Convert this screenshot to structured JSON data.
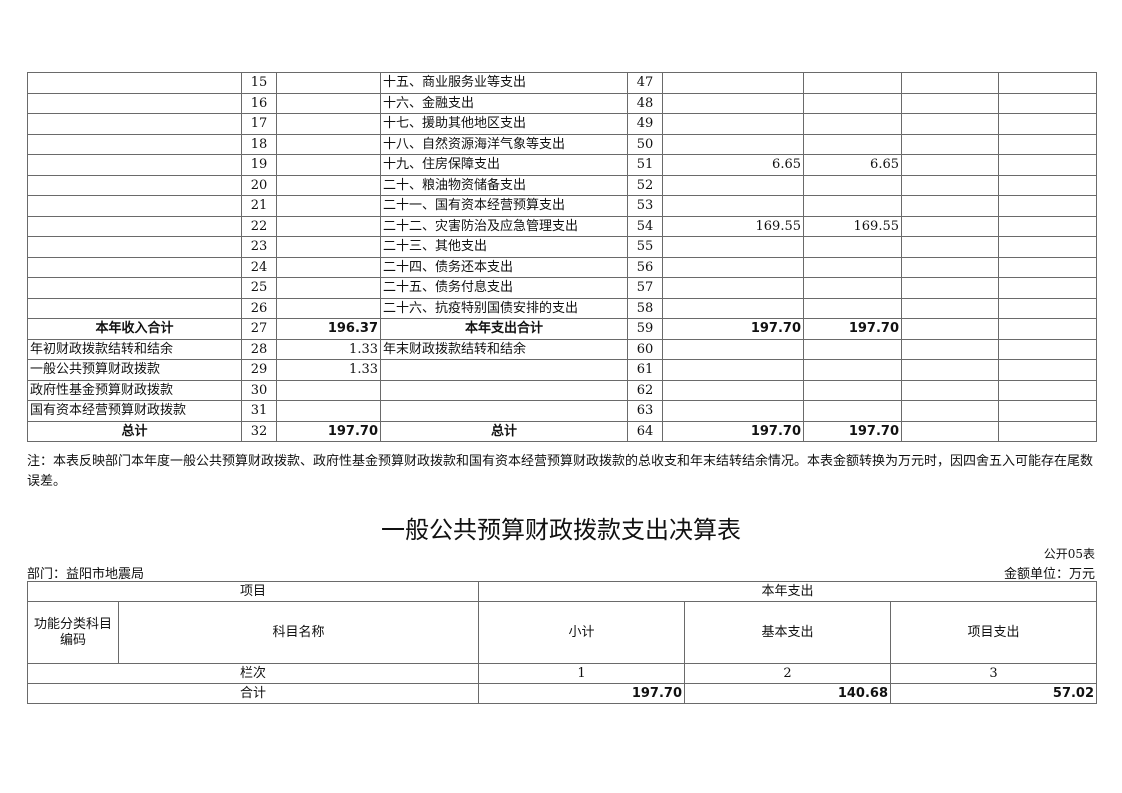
{
  "table1": {
    "rows": [
      {
        "income_item": "",
        "income_no": "15",
        "income_amt": "",
        "exp_item": "十五、商业服务业等支出",
        "exp_no": "47",
        "c1": "",
        "c2": "",
        "c3": "",
        "c4": "",
        "bold": false,
        "center": false
      },
      {
        "income_item": "",
        "income_no": "16",
        "income_amt": "",
        "exp_item": "十六、金融支出",
        "exp_no": "48",
        "c1": "",
        "c2": "",
        "c3": "",
        "c4": "",
        "bold": false,
        "center": false
      },
      {
        "income_item": "",
        "income_no": "17",
        "income_amt": "",
        "exp_item": "十七、援助其他地区支出",
        "exp_no": "49",
        "c1": "",
        "c2": "",
        "c3": "",
        "c4": "",
        "bold": false,
        "center": false
      },
      {
        "income_item": "",
        "income_no": "18",
        "income_amt": "",
        "exp_item": "十八、自然资源海洋气象等支出",
        "exp_no": "50",
        "c1": "",
        "c2": "",
        "c3": "",
        "c4": "",
        "bold": false,
        "center": false
      },
      {
        "income_item": "",
        "income_no": "19",
        "income_amt": "",
        "exp_item": "十九、住房保障支出",
        "exp_no": "51",
        "c1": "6.65",
        "c2": "6.65",
        "c3": "",
        "c4": "",
        "bold": false,
        "center": false
      },
      {
        "income_item": "",
        "income_no": "20",
        "income_amt": "",
        "exp_item": "二十、粮油物资储备支出",
        "exp_no": "52",
        "c1": "",
        "c2": "",
        "c3": "",
        "c4": "",
        "bold": false,
        "center": false
      },
      {
        "income_item": "",
        "income_no": "21",
        "income_amt": "",
        "exp_item": "二十一、国有资本经营预算支出",
        "exp_no": "53",
        "c1": "",
        "c2": "",
        "c3": "",
        "c4": "",
        "bold": false,
        "center": false
      },
      {
        "income_item": "",
        "income_no": "22",
        "income_amt": "",
        "exp_item": "二十二、灾害防治及应急管理支出",
        "exp_no": "54",
        "c1": "169.55",
        "c2": "169.55",
        "c3": "",
        "c4": "",
        "bold": false,
        "center": false
      },
      {
        "income_item": "",
        "income_no": "23",
        "income_amt": "",
        "exp_item": "二十三、其他支出",
        "exp_no": "55",
        "c1": "",
        "c2": "",
        "c3": "",
        "c4": "",
        "bold": false,
        "center": false
      },
      {
        "income_item": "",
        "income_no": "24",
        "income_amt": "",
        "exp_item": "二十四、债务还本支出",
        "exp_no": "56",
        "c1": "",
        "c2": "",
        "c3": "",
        "c4": "",
        "bold": false,
        "center": false
      },
      {
        "income_item": "",
        "income_no": "25",
        "income_amt": "",
        "exp_item": "二十五、债务付息支出",
        "exp_no": "57",
        "c1": "",
        "c2": "",
        "c3": "",
        "c4": "",
        "bold": false,
        "center": false
      },
      {
        "income_item": "",
        "income_no": "26",
        "income_amt": "",
        "exp_item": "二十六、抗疫特别国债安排的支出",
        "exp_no": "58",
        "c1": "",
        "c2": "",
        "c3": "",
        "c4": "",
        "bold": false,
        "center": false
      },
      {
        "income_item": "本年收入合计",
        "income_no": "27",
        "income_amt": "196.37",
        "exp_item": "本年支出合计",
        "exp_no": "59",
        "c1": "197.70",
        "c2": "197.70",
        "c3": "",
        "c4": "",
        "bold": true,
        "center": true
      },
      {
        "income_item": "年初财政拨款结转和结余",
        "income_no": "28",
        "income_amt": "1.33",
        "exp_item": "年末财政拨款结转和结余",
        "exp_no": "60",
        "c1": "",
        "c2": "",
        "c3": "",
        "c4": "",
        "bold": false,
        "center": false
      },
      {
        "income_item": "一般公共预算财政拨款",
        "income_no": "29",
        "income_amt": "1.33",
        "exp_item": "",
        "exp_no": "61",
        "c1": "",
        "c2": "",
        "c3": "",
        "c4": "",
        "bold": false,
        "center": false
      },
      {
        "income_item": "政府性基金预算财政拨款",
        "income_no": "30",
        "income_amt": "",
        "exp_item": "",
        "exp_no": "62",
        "c1": "",
        "c2": "",
        "c3": "",
        "c4": "",
        "bold": false,
        "center": false
      },
      {
        "income_item": "国有资本经营预算财政拨款",
        "income_no": "31",
        "income_amt": "",
        "exp_item": "",
        "exp_no": "63",
        "c1": "",
        "c2": "",
        "c3": "",
        "c4": "",
        "bold": false,
        "center": false
      },
      {
        "income_item": "总计",
        "income_no": "32",
        "income_amt": "197.70",
        "exp_item": "总计",
        "exp_no": "64",
        "c1": "197.70",
        "c2": "197.70",
        "c3": "",
        "c4": "",
        "bold": true,
        "center": true
      }
    ]
  },
  "note": "注：本表反映部门本年度一般公共预算财政拨款、政府性基金预算财政拨款和国有资本经营预算财政拨款的总收支和年末结转结余情况。本表金额转换为万元时，因四舍五入可能存在尾数误差。",
  "table2": {
    "title": "一般公共预算财政拨款支出决算表",
    "form_no": "公开05表",
    "department": "部门：益阳市地震局",
    "unit": "金额单位：万元",
    "header_project": "项目",
    "header_current_year": "本年支出",
    "col_code": "功能分类科目编码",
    "col_name": "科目名称",
    "col_subtotal": "小计",
    "col_basic": "基本支出",
    "col_project": "项目支出",
    "row_index_label": "栏次",
    "idx1": "1",
    "idx2": "2",
    "idx3": "3",
    "total_label": "合计",
    "total_subtotal": "197.70",
    "total_basic": "140.68",
    "total_project": "57.02"
  }
}
